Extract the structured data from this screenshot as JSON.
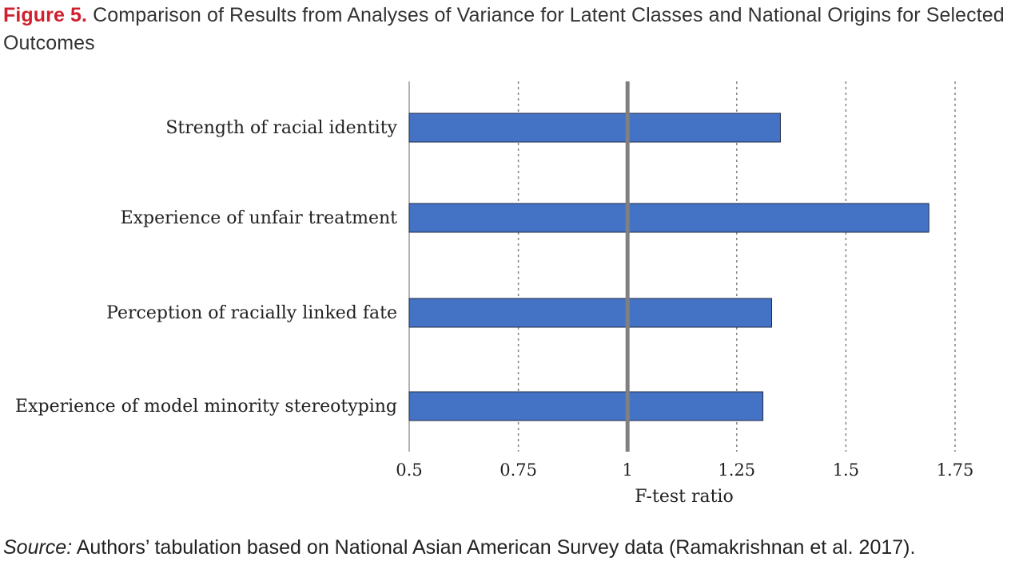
{
  "figure_label": "Figure 5.",
  "figure_title": "Comparison of Results from Analyses of Variance for Latent Classes and National Origins for Selected Outcomes",
  "source": {
    "label": "Source:",
    "text": "Authors’ tabulation based on National Asian American Survey data (Ramakrishnan et al. 2017)."
  },
  "colors": {
    "bar": "#4472c4",
    "reference_line": "#808080",
    "figure_label": "#d0202e"
  },
  "chart_data": {
    "type": "bar",
    "orientation": "horizontal",
    "categories": [
      "Strength of racial identity",
      "Experience of unfair treatment",
      "Perception of racially linked fate",
      "Experience of model minority stereotyping"
    ],
    "values": [
      1.35,
      1.69,
      1.33,
      1.31
    ],
    "xlabel": "F-test ratio",
    "ylabel": "",
    "xlim": [
      0.5,
      1.75
    ],
    "xticks": [
      0.5,
      0.75,
      1,
      1.25,
      1.5,
      1.75
    ],
    "xtick_labels": [
      "0.5",
      "0.75",
      "1",
      "1.25",
      "1.5",
      "1.75"
    ],
    "reference_line": 1,
    "grid": "vertical dashed",
    "legend": "none"
  }
}
